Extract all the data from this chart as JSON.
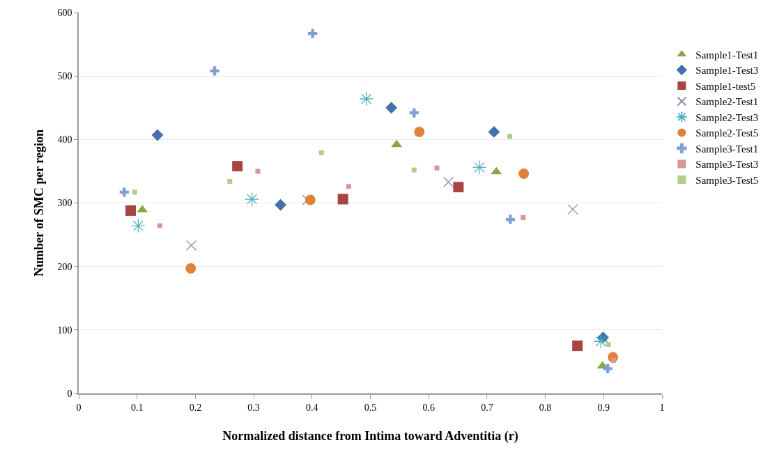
{
  "chart_data": {
    "type": "scatter",
    "xlabel": "Normalized distance from Intima toward Adventitia (r)",
    "ylabel": "Number of SMC per region",
    "xlim": [
      0,
      1
    ],
    "xticks": [
      0,
      0.1,
      0.2,
      0.3,
      0.4,
      0.5,
      0.6,
      0.7,
      0.8,
      0.9,
      1
    ],
    "ylim": [
      0,
      600
    ],
    "yticks": [
      0,
      100,
      200,
      300,
      400,
      500,
      600
    ],
    "grid": "y",
    "legend": "right",
    "series": [
      {
        "name": "Sample1-Test1",
        "color": "#8aa64a",
        "marker": "triangle",
        "x": [
          0.109,
          0.545,
          0.716,
          0.898
        ],
        "values": [
          289,
          392,
          349,
          43
        ]
      },
      {
        "name": "Sample1-Test3",
        "color": "#4472a8",
        "marker": "diamond",
        "x": [
          0.135,
          0.346,
          0.536,
          0.712,
          0.899
        ],
        "values": [
          407,
          297,
          450,
          412,
          88
        ]
      },
      {
        "name": "Sample1-test5",
        "color": "#a84444",
        "marker": "square",
        "x": [
          0.089,
          0.272,
          0.453,
          0.651,
          0.855
        ],
        "values": [
          288,
          358,
          306,
          325,
          75
        ]
      },
      {
        "name": "Sample2-Test1",
        "color": "#9a85b5",
        "marker": "x",
        "x": [
          0.193,
          0.392,
          0.634,
          0.847
        ],
        "values": [
          233,
          305,
          333,
          290
        ]
      },
      {
        "name": "Sample2-Test3",
        "color": "#4fb0c6",
        "marker": "cross",
        "x": [
          0.102,
          0.297,
          0.493,
          0.687,
          0.895
        ],
        "values": [
          264,
          306,
          464,
          356,
          82
        ]
      },
      {
        "name": "Sample2-Test5",
        "color": "#e0833a",
        "marker": "circle",
        "x": [
          0.192,
          0.397,
          0.584,
          0.763,
          0.916
        ],
        "values": [
          197,
          305,
          412,
          346,
          57
        ]
      },
      {
        "name": "Sample3-Test1",
        "color": "#7f9fd6",
        "marker": "cross",
        "x": [
          0.078,
          0.233,
          0.401,
          0.575,
          0.74,
          0.907
        ],
        "values": [
          317,
          508,
          567,
          442,
          274,
          39
        ]
      },
      {
        "name": "Sample3-Test3",
        "color": "#d99594",
        "marker": "square",
        "x": [
          0.139,
          0.307,
          0.463,
          0.614,
          0.762,
          0.917
        ],
        "values": [
          264,
          350,
          326,
          355,
          277,
          52
        ]
      },
      {
        "name": "Sample3-Test5",
        "color": "#b3cc8a",
        "marker": "square",
        "x": [
          0.096,
          0.259,
          0.416,
          0.575,
          0.739,
          0.908
        ],
        "values": [
          317,
          334,
          379,
          352,
          405,
          77
        ]
      }
    ]
  }
}
